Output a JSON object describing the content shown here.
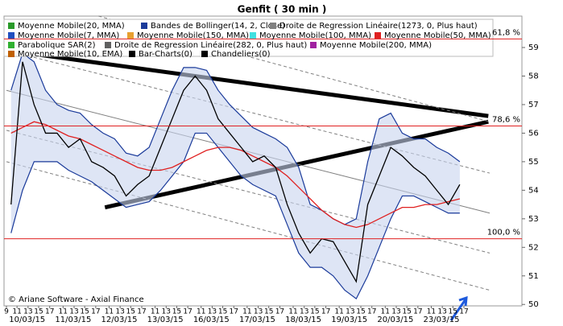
{
  "chart_data": {
    "type": "line",
    "title": "Genfit  ( 30 min )",
    "copyright": "© Ariane Software - Axial Finance",
    "x": [
      0.1,
      0.35,
      0.6,
      0.85,
      1.1,
      1.35,
      1.6,
      1.85,
      2.1,
      2.35,
      2.6,
      2.85,
      3.1,
      3.35,
      3.6,
      3.85,
      4.1,
      4.35,
      4.6,
      4.85,
      5.1,
      5.35,
      5.6,
      5.85,
      6.1,
      6.35,
      6.6,
      6.85,
      7.1,
      7.35,
      7.6,
      7.85,
      8.1,
      8.35,
      8.6,
      8.85,
      9.1,
      9.35,
      9.6,
      9.85
    ],
    "xlim": [
      0,
      11.2
    ],
    "ylim": [
      49.95,
      60.1
    ],
    "yticks": [
      50,
      51,
      52,
      53,
      54,
      55,
      56,
      57,
      58,
      59
    ],
    "xticks": [
      {
        "value": 0.45,
        "label": "10/03/15"
      },
      {
        "value": 1.45,
        "label": "11/03/15"
      },
      {
        "value": 2.45,
        "label": "12/03/15"
      },
      {
        "value": 3.45,
        "label": "13/03/15"
      },
      {
        "value": 4.45,
        "label": "16/03/15"
      },
      {
        "value": 5.45,
        "label": "17/03/15"
      },
      {
        "value": 6.45,
        "label": "18/03/15"
      },
      {
        "value": 7.45,
        "label": "19/03/15"
      },
      {
        "value": 8.45,
        "label": "20/03/15"
      },
      {
        "value": 9.45,
        "label": "23/03/15"
      }
    ],
    "minor_xticks": [
      {
        "value": 0,
        "label": "9"
      },
      {
        "value": 0.23,
        "label": "11"
      },
      {
        "value": 0.47,
        "label": "13"
      },
      {
        "value": 0.7,
        "label": "15"
      },
      {
        "value": 0.94,
        "label": "17"
      },
      {
        "value": 1.23,
        "label": "11"
      },
      {
        "value": 1.47,
        "label": "13"
      },
      {
        "value": 1.7,
        "label": "15"
      },
      {
        "value": 1.94,
        "label": "17"
      },
      {
        "value": 2.23,
        "label": "11"
      },
      {
        "value": 2.47,
        "label": "13"
      },
      {
        "value": 2.7,
        "label": "15"
      },
      {
        "value": 2.94,
        "label": "17"
      },
      {
        "value": 3.23,
        "label": "11"
      },
      {
        "value": 3.47,
        "label": "13"
      },
      {
        "value": 3.7,
        "label": "15"
      },
      {
        "value": 3.94,
        "label": "17"
      },
      {
        "value": 4.23,
        "label": "11"
      },
      {
        "value": 4.47,
        "label": "13"
      },
      {
        "value": 4.7,
        "label": "15"
      },
      {
        "value": 4.94,
        "label": "17"
      },
      {
        "value": 5.23,
        "label": "11"
      },
      {
        "value": 5.47,
        "label": "13"
      },
      {
        "value": 5.7,
        "label": "15"
      },
      {
        "value": 5.94,
        "label": "17"
      },
      {
        "value": 6.23,
        "label": "11"
      },
      {
        "value": 6.47,
        "label": "13"
      },
      {
        "value": 6.7,
        "label": "15"
      },
      {
        "value": 6.94,
        "label": "17"
      },
      {
        "value": 7.23,
        "label": "11"
      },
      {
        "value": 7.47,
        "label": "13"
      },
      {
        "value": 7.7,
        "label": "15"
      },
      {
        "value": 7.94,
        "label": "17"
      },
      {
        "value": 8.23,
        "label": "11"
      },
      {
        "value": 8.47,
        "label": "13"
      },
      {
        "value": 8.7,
        "label": "15"
      },
      {
        "value": 8.94,
        "label": "17"
      },
      {
        "value": 9.23,
        "label": "11"
      },
      {
        "value": 9.47,
        "label": "13"
      },
      {
        "value": 9.7,
        "label": "15"
      },
      {
        "value": 9.94,
        "label": "17"
      }
    ],
    "series": [
      {
        "name": "Moyenne Mobile(20, MMA)",
        "color": "#2a9a2a"
      },
      {
        "name": "Bandes de Bollinger(14, 2, Close)",
        "color": "#1a3a9a",
        "style": "band",
        "values": [
          57.5,
          58.8,
          58.5,
          57.5,
          57,
          56.8,
          56.7,
          56.3,
          56,
          55.8,
          55.3,
          55.2,
          55.5,
          56.5,
          57.5,
          58.3,
          58.3,
          58.2,
          57.5,
          57,
          56.6,
          56.2,
          56,
          55.8,
          55.5,
          54.8,
          53.5,
          53.3,
          53,
          52.8,
          53,
          55,
          56.5,
          56.7,
          56,
          55.8,
          55.8,
          55.5,
          55.3,
          55
        ],
        "lower": [
          52.5,
          54,
          55,
          55,
          55,
          54.7,
          54.5,
          54.3,
          54,
          53.7,
          53.4,
          53.5,
          53.6,
          54,
          54.5,
          55,
          56,
          56,
          55.5,
          55,
          54.5,
          54.2,
          54,
          53.8,
          52.8,
          51.8,
          51.3,
          51.3,
          51,
          50.5,
          50.2,
          51,
          52,
          53,
          53.8,
          53.8,
          53.6,
          53.4,
          53.2,
          53.2
        ]
      },
      {
        "name": "Droite de Regression Linéaire(1273, 0, Plus haut)",
        "color": "#808080"
      },
      {
        "name": "Moyenne Mobile(7, MMA)",
        "color": "#2050c0"
      },
      {
        "name": "Moyenne Mobile(150, MMA)",
        "color": "#e8a030"
      },
      {
        "name": "Moyenne Mobile(100, MMA)",
        "color": "#40e0e0"
      },
      {
        "name": "Moyenne Mobile(50, MMA)",
        "color": "#e02020",
        "style": "line",
        "values": [
          56,
          56.2,
          56.4,
          56.3,
          56.1,
          55.9,
          55.8,
          55.6,
          55.4,
          55.2,
          55,
          54.8,
          54.7,
          54.7,
          54.8,
          55,
          55.2,
          55.4,
          55.5,
          55.5,
          55.4,
          55.2,
          55,
          54.8,
          54.5,
          54.1,
          53.7,
          53.3,
          53,
          52.8,
          52.7,
          52.8,
          53,
          53.2,
          53.4,
          53.4,
          53.5,
          53.5,
          53.6,
          53.7
        ]
      },
      {
        "name": "Parabolique SAR(2)",
        "color": "#30b030"
      },
      {
        "name": "Droite de Regression Linéaire(282, 0, Plus haut)",
        "color": "#606060"
      },
      {
        "name": "Moyenne Mobile(200, MMA)",
        "color": "#a020a0"
      },
      {
        "name": "Moyenne Mobile(10, EMA)",
        "color": "#c06000"
      },
      {
        "name": "Bar-Charts(0)",
        "color": "#000000",
        "style": "line",
        "values": [
          53.5,
          58.5,
          57,
          56,
          56,
          55.5,
          55.8,
          55,
          54.8,
          54.5,
          53.8,
          54.2,
          54.5,
          55.5,
          56.5,
          57.5,
          58,
          57.5,
          56.5,
          56,
          55.5,
          55,
          55.2,
          54.8,
          53.5,
          52.5,
          51.8,
          52.3,
          52.2,
          51.5,
          50.8,
          53.5,
          54.5,
          55.5,
          55.2,
          54.8,
          54.5,
          54,
          53.5,
          54.2
        ]
      },
      {
        "name": "Chandeliers(0)",
        "color": "#000000"
      }
    ],
    "trendlines": [
      {
        "points": [
          0,
          58.9,
          10.47,
          56.6
        ],
        "color": "#000000",
        "width": 5
      },
      {
        "points": [
          2.14,
          53.4,
          10.47,
          56.4
        ],
        "color": "#000000",
        "width": 5
      },
      {
        "points": [
          0,
          57.5,
          10.5,
          53.2
        ],
        "color": "#808080",
        "width": 1
      },
      {
        "points": [
          0,
          58.9,
          10.5,
          54.6
        ],
        "color": "#808080",
        "width": 1,
        "dash": "4 3"
      },
      {
        "points": [
          0,
          56.1,
          10.5,
          51.8
        ],
        "color": "#808080",
        "width": 1,
        "dash": "4 3"
      },
      {
        "points": [
          2,
          60.1,
          10.5,
          56.4
        ],
        "color": "#808080",
        "width": 1,
        "dash": "4 3"
      },
      {
        "points": [
          0,
          55,
          10.5,
          50.5
        ],
        "color": "#808080",
        "width": 1,
        "dash": "4 3"
      }
    ],
    "levels": [
      {
        "value": 59.3,
        "label": "61,8 %"
      },
      {
        "value": 56.25,
        "label": "78,6 %"
      },
      {
        "value": 52.3,
        "label": "100,0 %"
      }
    ],
    "level_color": "#e02020"
  }
}
